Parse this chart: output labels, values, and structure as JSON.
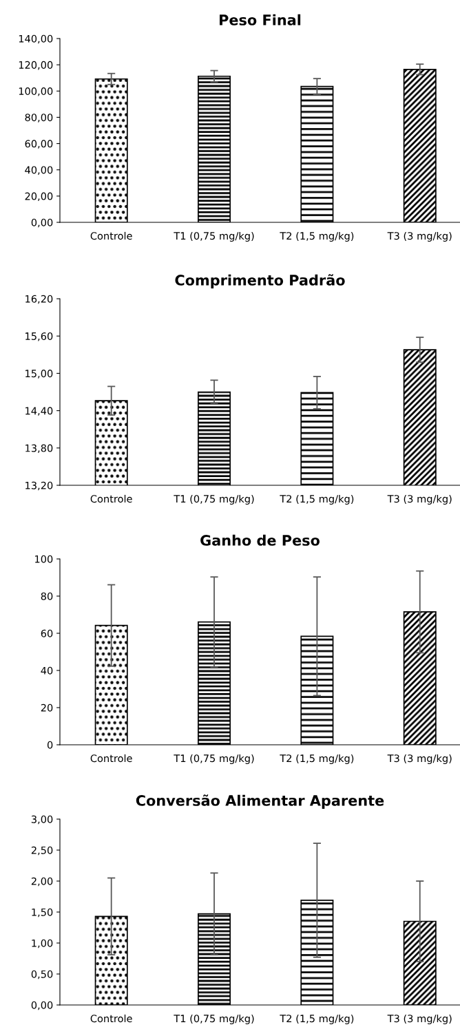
{
  "chart_data": [
    {
      "type": "bar",
      "title": "Peso Final",
      "categories": [
        "Controle",
        "T1 (0,75 mg/kg)",
        "T2 (1,5 mg/kg)",
        "T3 (3 mg/kg)"
      ],
      "series": [
        {
          "color": "#000000",
          "values": [
            109.2,
            111.3,
            103.5,
            116.5
          ],
          "errors": [
            4.2,
            4.3,
            6,
            4
          ]
        }
      ],
      "ylim": [
        0,
        140
      ],
      "yticks": [
        {
          "value": 0,
          "label": "0,00"
        },
        {
          "value": 20,
          "label": "20,00"
        },
        {
          "value": 40,
          "label": "40,00"
        },
        {
          "value": 60,
          "label": "60,00"
        },
        {
          "value": 80,
          "label": "80,00"
        },
        {
          "value": 100,
          "label": "100,00"
        },
        {
          "value": 120,
          "label": "120,00"
        },
        {
          "value": 140,
          "label": "140,00"
        }
      ],
      "grid": false,
      "legend": false
    },
    {
      "type": "bar",
      "title": "Comprimento Padrão",
      "categories": [
        "Controle",
        "T1 (0,75 mg/kg)",
        "T2 (1,5 mg/kg)",
        "T3 (3 mg/kg)"
      ],
      "series": [
        {
          "color": "#000000",
          "values": [
            14.56,
            14.7,
            14.69,
            15.38
          ],
          "errors": [
            0.23,
            0.19,
            0.26,
            0.2
          ]
        }
      ],
      "ylim": [
        13.2,
        16.2
      ],
      "yticks": [
        {
          "value": 13.2,
          "label": "13,20"
        },
        {
          "value": 13.8,
          "label": "13,80"
        },
        {
          "value": 14.4,
          "label": "14,40"
        },
        {
          "value": 15.0,
          "label": "15,00"
        },
        {
          "value": 15.6,
          "label": "15,60"
        },
        {
          "value": 16.2,
          "label": "16,20"
        }
      ],
      "grid": false,
      "legend": false
    },
    {
      "type": "bar",
      "title": "Ganho de Peso",
      "categories": [
        "Controle",
        "T1 (0,75 mg/kg)",
        "T2 (1,5 mg/kg)",
        "T3 (3 mg/kg)"
      ],
      "series": [
        {
          "color": "#000000",
          "values": [
            64.2,
            66.1,
            58.4,
            71.5
          ],
          "errors": [
            21.9,
            24.2,
            31.9,
            22
          ]
        }
      ],
      "ylim": [
        0,
        100
      ],
      "yticks": [
        0,
        20,
        40,
        60,
        80,
        100
      ],
      "grid": false,
      "legend": false
    },
    {
      "type": "bar",
      "title": "Conversão Alimentar Aparente",
      "categories": [
        "Controle",
        "T1 (0,75 mg/kg)",
        "T2 (1,5 mg/kg)",
        "T3 (3 mg/kg)"
      ],
      "series": [
        {
          "color": "#000000",
          "values": [
            1.43,
            1.47,
            1.69,
            1.35
          ],
          "errors": [
            0.62,
            0.66,
            0.92,
            0.65
          ]
        }
      ],
      "ylim": [
        0,
        3
      ],
      "yticks": [
        {
          "value": 0,
          "label": "0,00"
        },
        {
          "value": 0.5,
          "label": "0,50"
        },
        {
          "value": 1,
          "label": "1,00"
        },
        {
          "value": 1.5,
          "label": "1,50"
        },
        {
          "value": 2,
          "label": "2,00"
        },
        {
          "value": 2.5,
          "label": "2,50"
        },
        {
          "value": 3,
          "label": "3,00"
        }
      ],
      "grid": false,
      "legend": false
    }
  ]
}
